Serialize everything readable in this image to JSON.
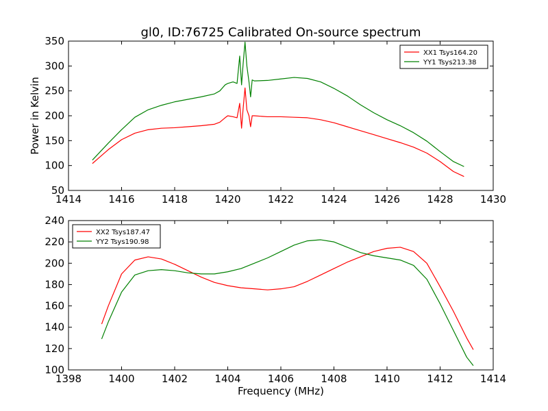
{
  "title": "gl0, ID:76725 Calibrated On-source spectrum",
  "colors": {
    "xx": "#ff0000",
    "yy": "#008000"
  },
  "chart_data": [
    {
      "type": "line",
      "title": "gl0, ID:76725 Calibrated On-source spectrum",
      "xlabel": "",
      "ylabel": "Power in Kelvin",
      "xlim": [
        1414,
        1430
      ],
      "ylim": [
        50,
        350
      ],
      "xticks": [
        "1414",
        "1416",
        "1418",
        "1420",
        "1422",
        "1424",
        "1426",
        "1428",
        "1430"
      ],
      "yticks": [
        "50",
        "100",
        "150",
        "200",
        "250",
        "300",
        "350"
      ],
      "grid": false,
      "legend": "top-right",
      "series": [
        {
          "name": "XX1 Tsys164.20",
          "color": "#ff0000",
          "x": [
            1414.9,
            1415.2,
            1415.5,
            1416.0,
            1416.5,
            1417.0,
            1417.5,
            1418.0,
            1418.5,
            1419.0,
            1419.5,
            1419.7,
            1419.9,
            1420.0,
            1420.2,
            1420.35,
            1420.45,
            1420.52,
            1420.58,
            1420.65,
            1420.72,
            1420.8,
            1420.86,
            1420.92,
            1421.0,
            1421.5,
            1422.0,
            1422.5,
            1423.0,
            1423.5,
            1424.0,
            1424.5,
            1425.0,
            1425.5,
            1426.0,
            1426.5,
            1427.0,
            1427.5,
            1428.0,
            1428.5,
            1428.9
          ],
          "y": [
            104,
            118,
            132,
            152,
            165,
            172,
            175,
            176,
            178,
            180,
            183,
            187,
            196,
            200,
            198,
            196,
            225,
            175,
            215,
            256,
            212,
            200,
            178,
            200,
            200,
            198,
            198,
            197,
            196,
            192,
            186,
            178,
            170,
            162,
            154,
            146,
            137,
            125,
            108,
            88,
            78
          ]
        },
        {
          "name": "YY1 Tsys213.38",
          "color": "#008000",
          "x": [
            1414.9,
            1415.2,
            1415.5,
            1416.0,
            1416.5,
            1417.0,
            1417.5,
            1418.0,
            1418.5,
            1419.0,
            1419.5,
            1419.7,
            1419.9,
            1420.0,
            1420.2,
            1420.35,
            1420.45,
            1420.52,
            1420.58,
            1420.65,
            1420.72,
            1420.8,
            1420.86,
            1420.92,
            1421.0,
            1421.5,
            1422.0,
            1422.5,
            1423.0,
            1423.5,
            1424.0,
            1424.5,
            1425.0,
            1425.5,
            1426.0,
            1426.5,
            1427.0,
            1427.5,
            1428.0,
            1428.5,
            1428.9
          ],
          "y": [
            111,
            128,
            145,
            172,
            197,
            212,
            221,
            228,
            233,
            238,
            244,
            250,
            262,
            265,
            268,
            265,
            320,
            262,
            305,
            348,
            300,
            268,
            238,
            272,
            270,
            271,
            274,
            277,
            275,
            268,
            255,
            240,
            222,
            206,
            192,
            180,
            166,
            149,
            128,
            108,
            98
          ]
        }
      ]
    },
    {
      "type": "line",
      "title": "",
      "xlabel": "Frequency (MHz)",
      "ylabel": "",
      "xlim": [
        1398,
        1414
      ],
      "ylim": [
        100,
        240
      ],
      "xticks": [
        "1398",
        "1400",
        "1402",
        "1404",
        "1406",
        "1408",
        "1410",
        "1412",
        "1414"
      ],
      "yticks": [
        "100",
        "120",
        "140",
        "160",
        "180",
        "200",
        "220",
        "240"
      ],
      "grid": false,
      "legend": "top-left",
      "series": [
        {
          "name": "XX2 Tsys187.47",
          "color": "#ff0000",
          "x": [
            1399.25,
            1399.5,
            1400.0,
            1400.5,
            1401.0,
            1401.5,
            1402.0,
            1402.5,
            1403.0,
            1403.5,
            1404.0,
            1404.5,
            1405.0,
            1405.5,
            1406.0,
            1406.5,
            1407.0,
            1407.5,
            1408.0,
            1408.5,
            1409.0,
            1409.5,
            1410.0,
            1410.5,
            1411.0,
            1411.5,
            1412.0,
            1412.5,
            1413.0,
            1413.25
          ],
          "y": [
            143,
            160,
            190,
            203,
            206,
            204,
            199,
            193,
            187,
            182,
            179,
            177,
            176,
            175,
            176,
            178,
            183,
            189,
            195,
            201,
            206,
            211,
            214,
            215,
            211,
            200,
            178,
            155,
            130,
            119
          ]
        },
        {
          "name": "YY2 Tsys190.98",
          "color": "#008000",
          "x": [
            1399.25,
            1399.5,
            1400.0,
            1400.5,
            1401.0,
            1401.5,
            1402.0,
            1402.5,
            1403.0,
            1403.5,
            1404.0,
            1404.5,
            1405.0,
            1405.5,
            1406.0,
            1406.5,
            1407.0,
            1407.5,
            1408.0,
            1408.5,
            1409.0,
            1409.5,
            1410.0,
            1410.5,
            1411.0,
            1411.5,
            1412.0,
            1412.5,
            1413.0,
            1413.25
          ],
          "y": [
            129,
            145,
            173,
            189,
            193,
            194,
            193,
            191,
            190,
            190,
            192,
            195,
            200,
            205,
            211,
            217,
            221,
            222,
            220,
            215,
            210,
            207,
            205,
            203,
            198,
            185,
            162,
            137,
            112,
            104
          ]
        }
      ]
    }
  ]
}
